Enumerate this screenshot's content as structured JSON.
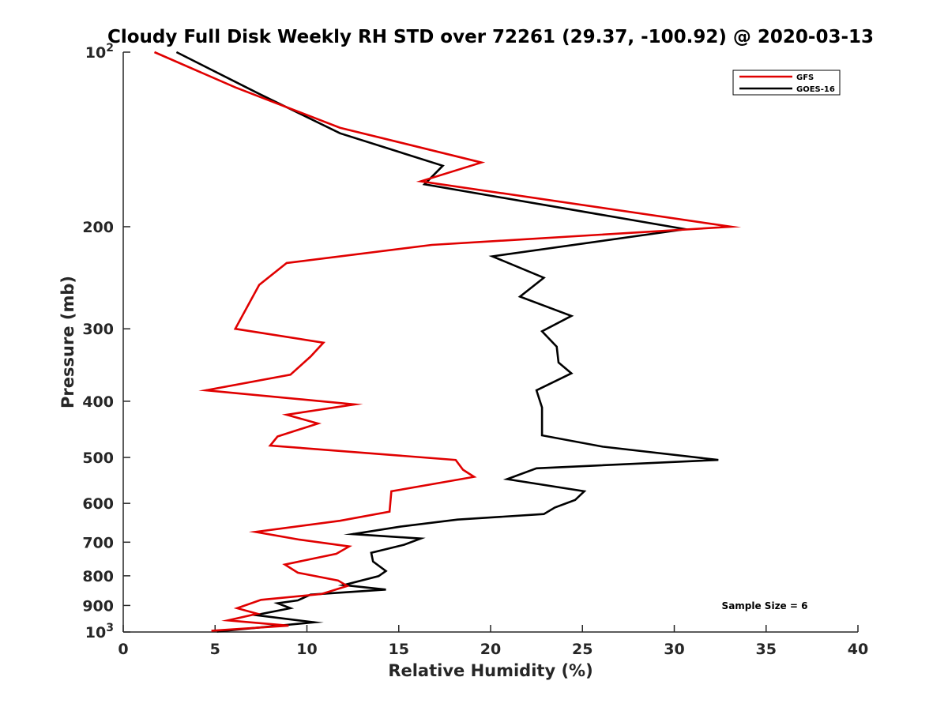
{
  "chart_data": {
    "type": "line",
    "title": "Cloudy Full Disk Weekly RH STD over 72261 (29.37, -100.92) @ 2020-03-13",
    "xlabel": "Relative Humidity (%)",
    "ylabel": "Pressure (mb)",
    "xlim": [
      0,
      40
    ],
    "ylim": [
      100,
      1000
    ],
    "y_scale": "log",
    "y_reversed": true,
    "x_ticks": [
      "0",
      "5",
      "10",
      "15",
      "20",
      "25",
      "30",
      "35",
      "40"
    ],
    "y_ticks": [
      {
        "value": 100,
        "label": "10",
        "sup": "2"
      },
      {
        "value": 200,
        "label": "200",
        "sup": ""
      },
      {
        "value": 300,
        "label": "300",
        "sup": ""
      },
      {
        "value": 400,
        "label": "400",
        "sup": ""
      },
      {
        "value": 500,
        "label": "500",
        "sup": ""
      },
      {
        "value": 600,
        "label": "600",
        "sup": ""
      },
      {
        "value": 700,
        "label": "700",
        "sup": ""
      },
      {
        "value": 800,
        "label": "800",
        "sup": ""
      },
      {
        "value": 900,
        "label": "900",
        "sup": ""
      },
      {
        "value": 1000,
        "label": "10",
        "sup": "3"
      }
    ],
    "legend_position": "top-right",
    "grid": false,
    "annotation": "Sample Size = 6",
    "series": [
      {
        "name": "GFS",
        "color": "#e00000",
        "points": [
          [
            1.7,
            100
          ],
          [
            6.1,
            115
          ],
          [
            11.8,
            135
          ],
          [
            19.5,
            155
          ],
          [
            16.2,
            167
          ],
          [
            33.1,
            200
          ],
          [
            16.8,
            215
          ],
          [
            8.9,
            231
          ],
          [
            7.4,
            252
          ],
          [
            6.1,
            300
          ],
          [
            10.9,
            317
          ],
          [
            10.2,
            335
          ],
          [
            9.1,
            360
          ],
          [
            4.5,
            383
          ],
          [
            12.6,
            405
          ],
          [
            8.9,
            422
          ],
          [
            10.6,
            437
          ],
          [
            8.4,
            460
          ],
          [
            8.0,
            477
          ],
          [
            18.1,
            505
          ],
          [
            18.5,
            525
          ],
          [
            19.1,
            540
          ],
          [
            14.6,
            572
          ],
          [
            14.5,
            620
          ],
          [
            11.8,
            643
          ],
          [
            7.2,
            672
          ],
          [
            9.6,
            693
          ],
          [
            12.3,
            712
          ],
          [
            11.6,
            733
          ],
          [
            8.8,
            765
          ],
          [
            9.5,
            790
          ],
          [
            11.7,
            815
          ],
          [
            12.2,
            833
          ],
          [
            10.8,
            860
          ],
          [
            7.5,
            880
          ],
          [
            6.2,
            910
          ],
          [
            7.3,
            930
          ],
          [
            5.7,
            955
          ],
          [
            9.0,
            975
          ],
          [
            4.8,
            995
          ]
        ]
      },
      {
        "name": "GOES-16",
        "color": "#000000",
        "points": [
          [
            2.9,
            100
          ],
          [
            7.4,
            118
          ],
          [
            11.8,
            138
          ],
          [
            17.4,
            157
          ],
          [
            16.4,
            169
          ],
          [
            30.6,
            202
          ],
          [
            20.1,
            225
          ],
          [
            22.9,
            245
          ],
          [
            21.6,
            264
          ],
          [
            24.4,
            285
          ],
          [
            22.8,
            303
          ],
          [
            23.6,
            322
          ],
          [
            23.7,
            343
          ],
          [
            24.4,
            358
          ],
          [
            22.5,
            383
          ],
          [
            22.8,
            410
          ],
          [
            22.8,
            458
          ],
          [
            26.1,
            479
          ],
          [
            32.4,
            505
          ],
          [
            22.5,
            522
          ],
          [
            20.9,
            545
          ],
          [
            25.1,
            572
          ],
          [
            24.6,
            592
          ],
          [
            23.5,
            610
          ],
          [
            22.9,
            626
          ],
          [
            18.2,
            640
          ],
          [
            15.1,
            658
          ],
          [
            12.5,
            678
          ],
          [
            16.2,
            690
          ],
          [
            15.3,
            707
          ],
          [
            13.5,
            730
          ],
          [
            13.6,
            756
          ],
          [
            14.3,
            785
          ],
          [
            13.9,
            801
          ],
          [
            12.0,
            830
          ],
          [
            14.3,
            845
          ],
          [
            10.2,
            862
          ],
          [
            9.5,
            882
          ],
          [
            8.4,
            892
          ],
          [
            9.1,
            910
          ],
          [
            7.2,
            935
          ],
          [
            10.4,
            962
          ],
          [
            5.1,
            998
          ]
        ]
      }
    ]
  }
}
